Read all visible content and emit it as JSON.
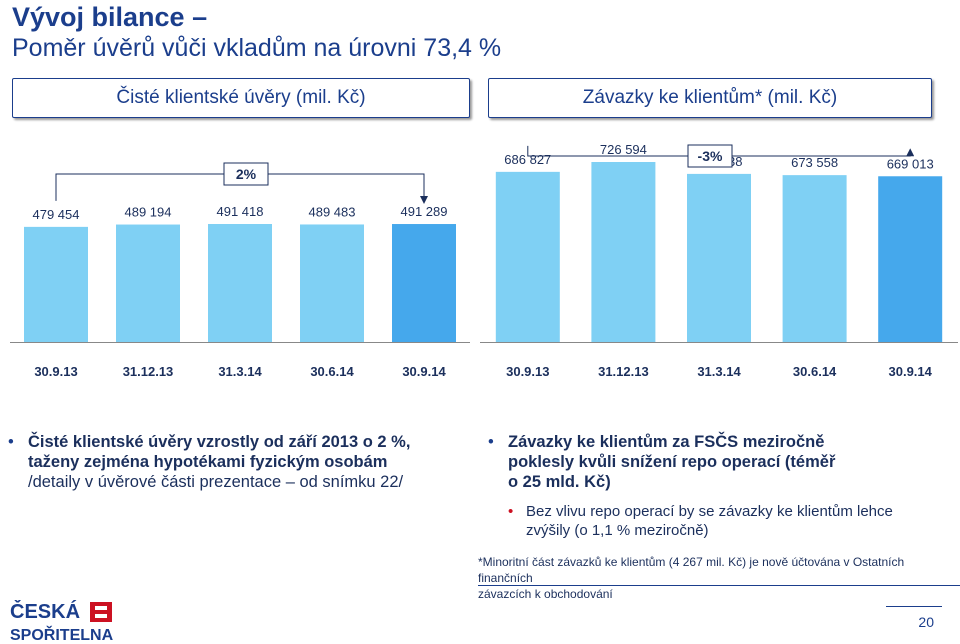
{
  "header": {
    "title": "Vývoj bilance –",
    "subtitle": "Poměr úvěrů vůči vkladům na úrovni 73,4 %"
  },
  "boxes": {
    "left": "Čisté klientské úvěry (mil. Kč)",
    "right": "Závazky ke klientům* (mil. Kč)"
  },
  "chart_data": [
    {
      "type": "bar",
      "categories": [
        "30.9.13",
        "31.12.13",
        "31.3.14",
        "30.6.14",
        "30.9.14"
      ],
      "values": [
        479454,
        489194,
        491418,
        489483,
        491289
      ],
      "value_labels": [
        "479 454",
        "489 194",
        "491 418",
        "489 483",
        "491 289"
      ],
      "change_label": "2%",
      "colors": {
        "normal": "#7fd0f4",
        "highlight": "#45a8ec"
      }
    },
    {
      "type": "bar",
      "categories": [
        "30.9.13",
        "31.12.13",
        "31.3.14",
        "30.6.14",
        "30.9.14"
      ],
      "values": [
        686827,
        726594,
        678538,
        673558,
        669013
      ],
      "value_labels": [
        "686 827",
        "726 594",
        "678 538",
        "673 558",
        "669 013"
      ],
      "change_label": "-3%",
      "colors": {
        "normal": "#7fd0f4",
        "highlight": "#45a8ec"
      }
    }
  ],
  "bullets_left": {
    "line1": "Čisté klientské úvěry vzrostly od září 2013 o 2 %,",
    "line2": "taženy zejména hypotékami fyzickým osobám",
    "line3": "/detaily v úvěrové části prezentace – od snímku 22/"
  },
  "bullets_right": {
    "line1": "Závazky ke klientům za FSČS meziročně",
    "line2": "poklesly kvůli snížení repo operací (téměř",
    "line3": "o 25 mld. Kč)",
    "sub1": "Bez vlivu repo operací by se závazky ke klientům lehce",
    "sub2": "zvýšily (o 1,1 % meziročně)"
  },
  "footnote": {
    "line1": "*Minoritní část závazků ke klientům (4 267 mil. Kč) je nově účtována v Ostatních finančních",
    "line2": "závazcích k obchodování"
  },
  "logo": {
    "line1": "ČESKÁ",
    "line2": "SPOŘITELNA"
  },
  "page_number": "20"
}
